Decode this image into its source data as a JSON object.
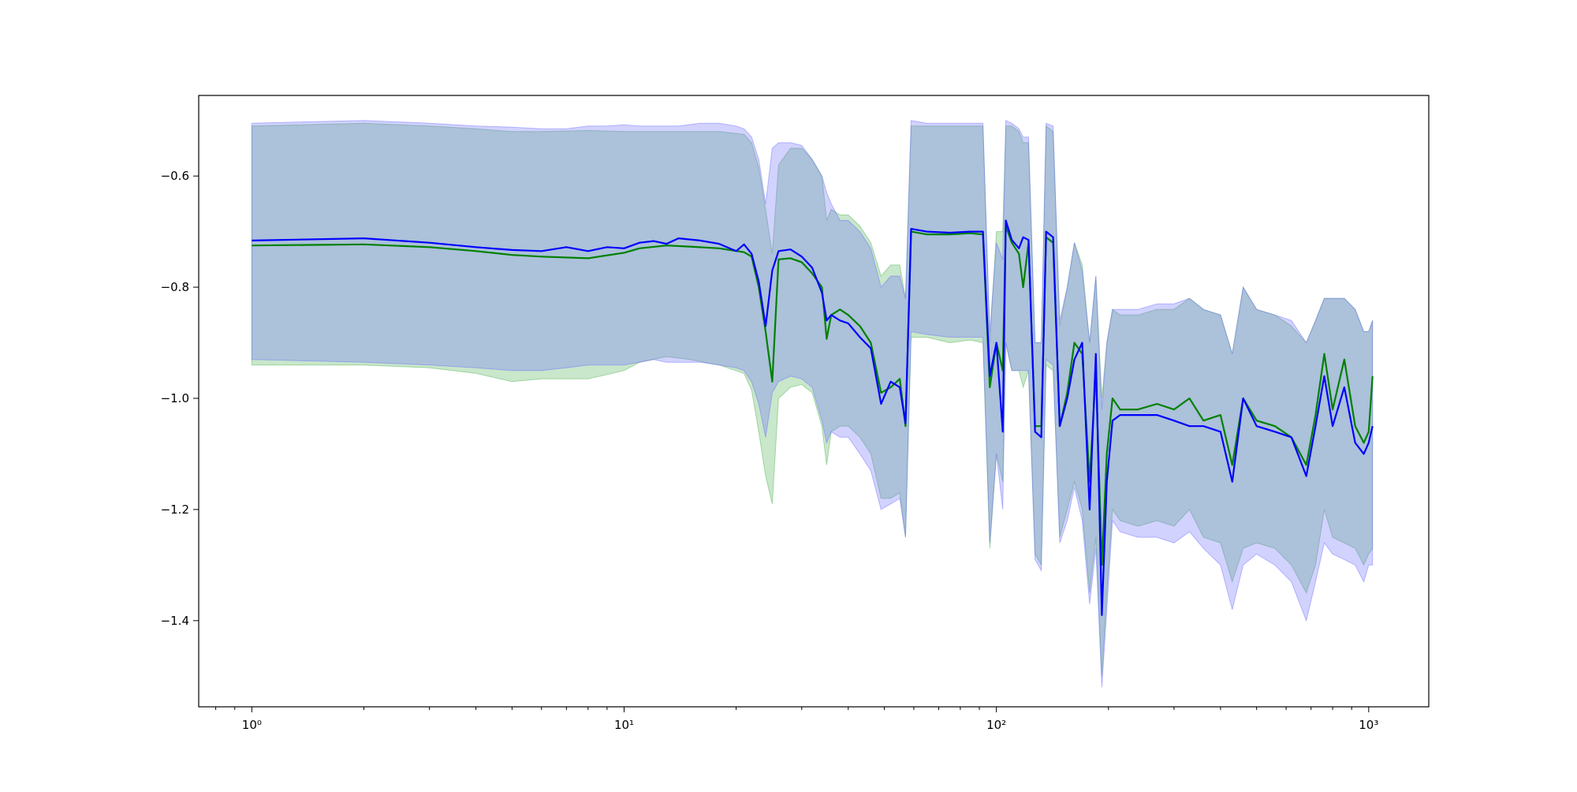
{
  "chart_data": {
    "type": "line",
    "title": "",
    "xlabel": "",
    "ylabel": "",
    "x_scale": "log",
    "xlim": [
      0.72,
      1450
    ],
    "ylim": [
      -1.555,
      -0.455
    ],
    "x_ticks": [
      {
        "value": 1,
        "label": "10⁰"
      },
      {
        "value": 10,
        "label": "10¹"
      },
      {
        "value": 100,
        "label": "10²"
      },
      {
        "value": 1000,
        "label": "10³"
      }
    ],
    "y_ticks": [
      {
        "value": -0.6,
        "label": "−0.6"
      },
      {
        "value": -0.8,
        "label": "−0.8"
      },
      {
        "value": -1.0,
        "label": "−1.0"
      },
      {
        "value": -1.2,
        "label": "−1.2"
      },
      {
        "value": -1.4,
        "label": "−1.4"
      }
    ],
    "grid": false,
    "legend": "none",
    "series": [
      {
        "color": "#008000",
        "band_color": "#4caf50",
        "points": [
          [
            1,
            -0.725,
            -0.51,
            -0.94
          ],
          [
            2,
            -0.723,
            -0.505,
            -0.94
          ],
          [
            3,
            -0.728,
            -0.51,
            -0.945
          ],
          [
            4,
            -0.735,
            -0.515,
            -0.955
          ],
          [
            5,
            -0.742,
            -0.52,
            -0.97
          ],
          [
            6,
            -0.745,
            -0.52,
            -0.965
          ],
          [
            8,
            -0.748,
            -0.518,
            -0.965
          ],
          [
            10,
            -0.738,
            -0.52,
            -0.95
          ],
          [
            11,
            -0.73,
            -0.52,
            -0.935
          ],
          [
            13,
            -0.725,
            -0.52,
            -0.925
          ],
          [
            15,
            -0.727,
            -0.52,
            -0.93
          ],
          [
            18,
            -0.73,
            -0.52,
            -0.94
          ],
          [
            21,
            -0.737,
            -0.525,
            -0.955
          ],
          [
            22,
            -0.745,
            -0.54,
            -0.985
          ],
          [
            23,
            -0.8,
            -0.585,
            -1.06
          ],
          [
            24,
            -0.88,
            -0.66,
            -1.14
          ],
          [
            25,
            -0.97,
            -0.74,
            -1.19
          ],
          [
            26,
            -0.75,
            -0.58,
            -1.0
          ],
          [
            28,
            -0.748,
            -0.55,
            -0.98
          ],
          [
            30,
            -0.755,
            -0.55,
            -0.975
          ],
          [
            32,
            -0.775,
            -0.57,
            -0.99
          ],
          [
            34,
            -0.8,
            -0.6,
            -1.05
          ],
          [
            35,
            -0.893,
            -0.68,
            -1.12
          ],
          [
            36,
            -0.85,
            -0.66,
            -1.06
          ],
          [
            38,
            -0.84,
            -0.67,
            -1.05
          ],
          [
            40,
            -0.85,
            -0.67,
            -1.05
          ],
          [
            43,
            -0.87,
            -0.69,
            -1.07
          ],
          [
            46,
            -0.9,
            -0.72,
            -1.1
          ],
          [
            49,
            -0.99,
            -0.78,
            -1.18
          ],
          [
            52,
            -0.98,
            -0.76,
            -1.18
          ],
          [
            55,
            -0.965,
            -0.76,
            -1.17
          ],
          [
            57,
            -1.05,
            -0.82,
            -1.25
          ],
          [
            59,
            -0.7,
            -0.51,
            -0.89
          ],
          [
            65,
            -0.705,
            -0.51,
            -0.89
          ],
          [
            75,
            -0.705,
            -0.51,
            -0.9
          ],
          [
            85,
            -0.703,
            -0.51,
            -0.895
          ],
          [
            92,
            -0.705,
            -0.51,
            -0.9
          ],
          [
            96,
            -0.98,
            -0.9,
            -1.27
          ],
          [
            100,
            -0.9,
            -0.7,
            -1.1
          ],
          [
            104,
            -0.95,
            -0.7,
            -1.15
          ],
          [
            106,
            -0.69,
            -0.51,
            -0.9
          ],
          [
            110,
            -0.72,
            -0.51,
            -0.95
          ],
          [
            115,
            -0.74,
            -0.52,
            -0.95
          ],
          [
            118,
            -0.8,
            -0.54,
            -0.98
          ],
          [
            122,
            -0.72,
            -0.54,
            -0.95
          ],
          [
            127,
            -1.05,
            -0.9,
            -1.28
          ],
          [
            132,
            -1.05,
            -0.9,
            -1.3
          ],
          [
            136,
            -0.71,
            -0.51,
            -0.94
          ],
          [
            142,
            -0.72,
            -0.52,
            -0.95
          ],
          [
            148,
            -1.05,
            -0.87,
            -1.25
          ],
          [
            155,
            -0.99,
            -0.8,
            -1.2
          ],
          [
            162,
            -0.9,
            -0.72,
            -1.15
          ],
          [
            170,
            -0.92,
            -0.76,
            -1.2
          ],
          [
            178,
            -1.15,
            -0.9,
            -1.35
          ],
          [
            185,
            -0.95,
            -0.78,
            -1.25
          ],
          [
            192,
            -1.3,
            -1.0,
            -1.5
          ],
          [
            198,
            -1.1,
            -0.9,
            -1.35
          ],
          [
            205,
            -1.0,
            -0.84,
            -1.2
          ],
          [
            215,
            -1.02,
            -0.85,
            -1.22
          ],
          [
            240,
            -1.02,
            -0.85,
            -1.23
          ],
          [
            270,
            -1.01,
            -0.84,
            -1.22
          ],
          [
            300,
            -1.02,
            -0.84,
            -1.23
          ],
          [
            330,
            -1.0,
            -0.82,
            -1.2
          ],
          [
            360,
            -1.04,
            -0.84,
            -1.25
          ],
          [
            400,
            -1.03,
            -0.85,
            -1.26
          ],
          [
            430,
            -1.12,
            -0.92,
            -1.33
          ],
          [
            460,
            -1.0,
            -0.8,
            -1.27
          ],
          [
            500,
            -1.04,
            -0.84,
            -1.26
          ],
          [
            560,
            -1.05,
            -0.85,
            -1.27
          ],
          [
            620,
            -1.07,
            -0.87,
            -1.3
          ],
          [
            680,
            -1.12,
            -0.9,
            -1.35
          ],
          [
            720,
            -1.03,
            -0.86,
            -1.3
          ],
          [
            760,
            -0.92,
            -0.82,
            -1.2
          ],
          [
            800,
            -1.02,
            -0.82,
            -1.25
          ],
          [
            860,
            -0.93,
            -0.82,
            -1.26
          ],
          [
            920,
            -1.05,
            -0.84,
            -1.27
          ],
          [
            970,
            -1.08,
            -0.88,
            -1.3
          ],
          [
            1000,
            -1.06,
            -0.88,
            -1.28
          ],
          [
            1024,
            -0.96,
            -0.86,
            -1.27
          ]
        ]
      },
      {
        "color": "#0000ff",
        "band_color": "#6a6aff",
        "points": [
          [
            1,
            -0.716,
            -0.505,
            -0.93
          ],
          [
            2,
            -0.712,
            -0.5,
            -0.935
          ],
          [
            3,
            -0.72,
            -0.505,
            -0.94
          ],
          [
            4,
            -0.728,
            -0.51,
            -0.945
          ],
          [
            5,
            -0.733,
            -0.512,
            -0.95
          ],
          [
            6,
            -0.735,
            -0.515,
            -0.95
          ],
          [
            7,
            -0.728,
            -0.515,
            -0.945
          ],
          [
            8,
            -0.735,
            -0.51,
            -0.94
          ],
          [
            9,
            -0.728,
            -0.51,
            -0.94
          ],
          [
            10,
            -0.73,
            -0.508,
            -0.94
          ],
          [
            11,
            -0.72,
            -0.51,
            -0.935
          ],
          [
            12,
            -0.717,
            -0.51,
            -0.93
          ],
          [
            13,
            -0.722,
            -0.51,
            -0.935
          ],
          [
            14,
            -0.712,
            -0.51,
            -0.935
          ],
          [
            16,
            -0.716,
            -0.505,
            -0.935
          ],
          [
            18,
            -0.722,
            -0.505,
            -0.94
          ],
          [
            20,
            -0.735,
            -0.51,
            -0.945
          ],
          [
            21,
            -0.723,
            -0.515,
            -0.95
          ],
          [
            22,
            -0.74,
            -0.53,
            -0.97
          ],
          [
            23,
            -0.79,
            -0.57,
            -1.01
          ],
          [
            24,
            -0.87,
            -0.65,
            -1.07
          ],
          [
            25,
            -0.77,
            -0.55,
            -0.99
          ],
          [
            26,
            -0.735,
            -0.54,
            -0.97
          ],
          [
            28,
            -0.732,
            -0.54,
            -0.96
          ],
          [
            30,
            -0.745,
            -0.545,
            -0.965
          ],
          [
            32,
            -0.765,
            -0.57,
            -0.98
          ],
          [
            34,
            -0.81,
            -0.6,
            -1.04
          ],
          [
            35,
            -0.86,
            -0.63,
            -1.08
          ],
          [
            36,
            -0.85,
            -0.65,
            -1.06
          ],
          [
            38,
            -0.86,
            -0.68,
            -1.07
          ],
          [
            40,
            -0.865,
            -0.68,
            -1.07
          ],
          [
            43,
            -0.89,
            -0.7,
            -1.1
          ],
          [
            46,
            -0.91,
            -0.73,
            -1.13
          ],
          [
            49,
            -1.01,
            -0.8,
            -1.2
          ],
          [
            52,
            -0.97,
            -0.78,
            -1.19
          ],
          [
            55,
            -0.98,
            -0.78,
            -1.18
          ],
          [
            57,
            -1.045,
            -0.82,
            -1.25
          ],
          [
            59,
            -0.695,
            -0.5,
            -0.88
          ],
          [
            65,
            -0.7,
            -0.505,
            -0.885
          ],
          [
            75,
            -0.702,
            -0.505,
            -0.89
          ],
          [
            85,
            -0.7,
            -0.505,
            -0.89
          ],
          [
            92,
            -0.7,
            -0.505,
            -0.89
          ],
          [
            96,
            -0.96,
            -0.88,
            -1.26
          ],
          [
            100,
            -0.9,
            -0.72,
            -1.1
          ],
          [
            104,
            -1.06,
            -0.75,
            -1.2
          ],
          [
            106,
            -0.68,
            -0.5,
            -0.9
          ],
          [
            110,
            -0.715,
            -0.505,
            -0.95
          ],
          [
            115,
            -0.73,
            -0.515,
            -0.95
          ],
          [
            118,
            -0.71,
            -0.53,
            -0.95
          ],
          [
            122,
            -0.715,
            -0.53,
            -0.95
          ],
          [
            127,
            -1.06,
            -0.9,
            -1.29
          ],
          [
            132,
            -1.07,
            -0.9,
            -1.31
          ],
          [
            136,
            -0.7,
            -0.505,
            -0.93
          ],
          [
            142,
            -0.71,
            -0.51,
            -0.94
          ],
          [
            148,
            -1.05,
            -0.86,
            -1.26
          ],
          [
            155,
            -1.0,
            -0.8,
            -1.22
          ],
          [
            162,
            -0.93,
            -0.72,
            -1.16
          ],
          [
            170,
            -0.9,
            -0.77,
            -1.22
          ],
          [
            178,
            -1.2,
            -0.9,
            -1.37
          ],
          [
            185,
            -0.92,
            -0.78,
            -1.27
          ],
          [
            192,
            -1.39,
            -1.02,
            -1.52
          ],
          [
            198,
            -1.15,
            -0.9,
            -1.38
          ],
          [
            205,
            -1.04,
            -0.84,
            -1.22
          ],
          [
            215,
            -1.03,
            -0.84,
            -1.24
          ],
          [
            240,
            -1.03,
            -0.84,
            -1.25
          ],
          [
            270,
            -1.03,
            -0.83,
            -1.25
          ],
          [
            300,
            -1.04,
            -0.83,
            -1.26
          ],
          [
            330,
            -1.05,
            -0.82,
            -1.24
          ],
          [
            360,
            -1.05,
            -0.84,
            -1.27
          ],
          [
            400,
            -1.06,
            -0.85,
            -1.3
          ],
          [
            430,
            -1.15,
            -0.92,
            -1.38
          ],
          [
            460,
            -1.0,
            -0.8,
            -1.3
          ],
          [
            500,
            -1.05,
            -0.84,
            -1.28
          ],
          [
            560,
            -1.06,
            -0.85,
            -1.3
          ],
          [
            620,
            -1.07,
            -0.86,
            -1.33
          ],
          [
            680,
            -1.14,
            -0.9,
            -1.4
          ],
          [
            720,
            -1.05,
            -0.86,
            -1.33
          ],
          [
            760,
            -0.96,
            -0.82,
            -1.26
          ],
          [
            800,
            -1.05,
            -0.82,
            -1.28
          ],
          [
            860,
            -0.98,
            -0.82,
            -1.29
          ],
          [
            920,
            -1.08,
            -0.84,
            -1.3
          ],
          [
            970,
            -1.1,
            -0.88,
            -1.33
          ],
          [
            1000,
            -1.08,
            -0.88,
            -1.3
          ],
          [
            1024,
            -1.05,
            -0.86,
            -1.3
          ]
        ]
      }
    ]
  }
}
